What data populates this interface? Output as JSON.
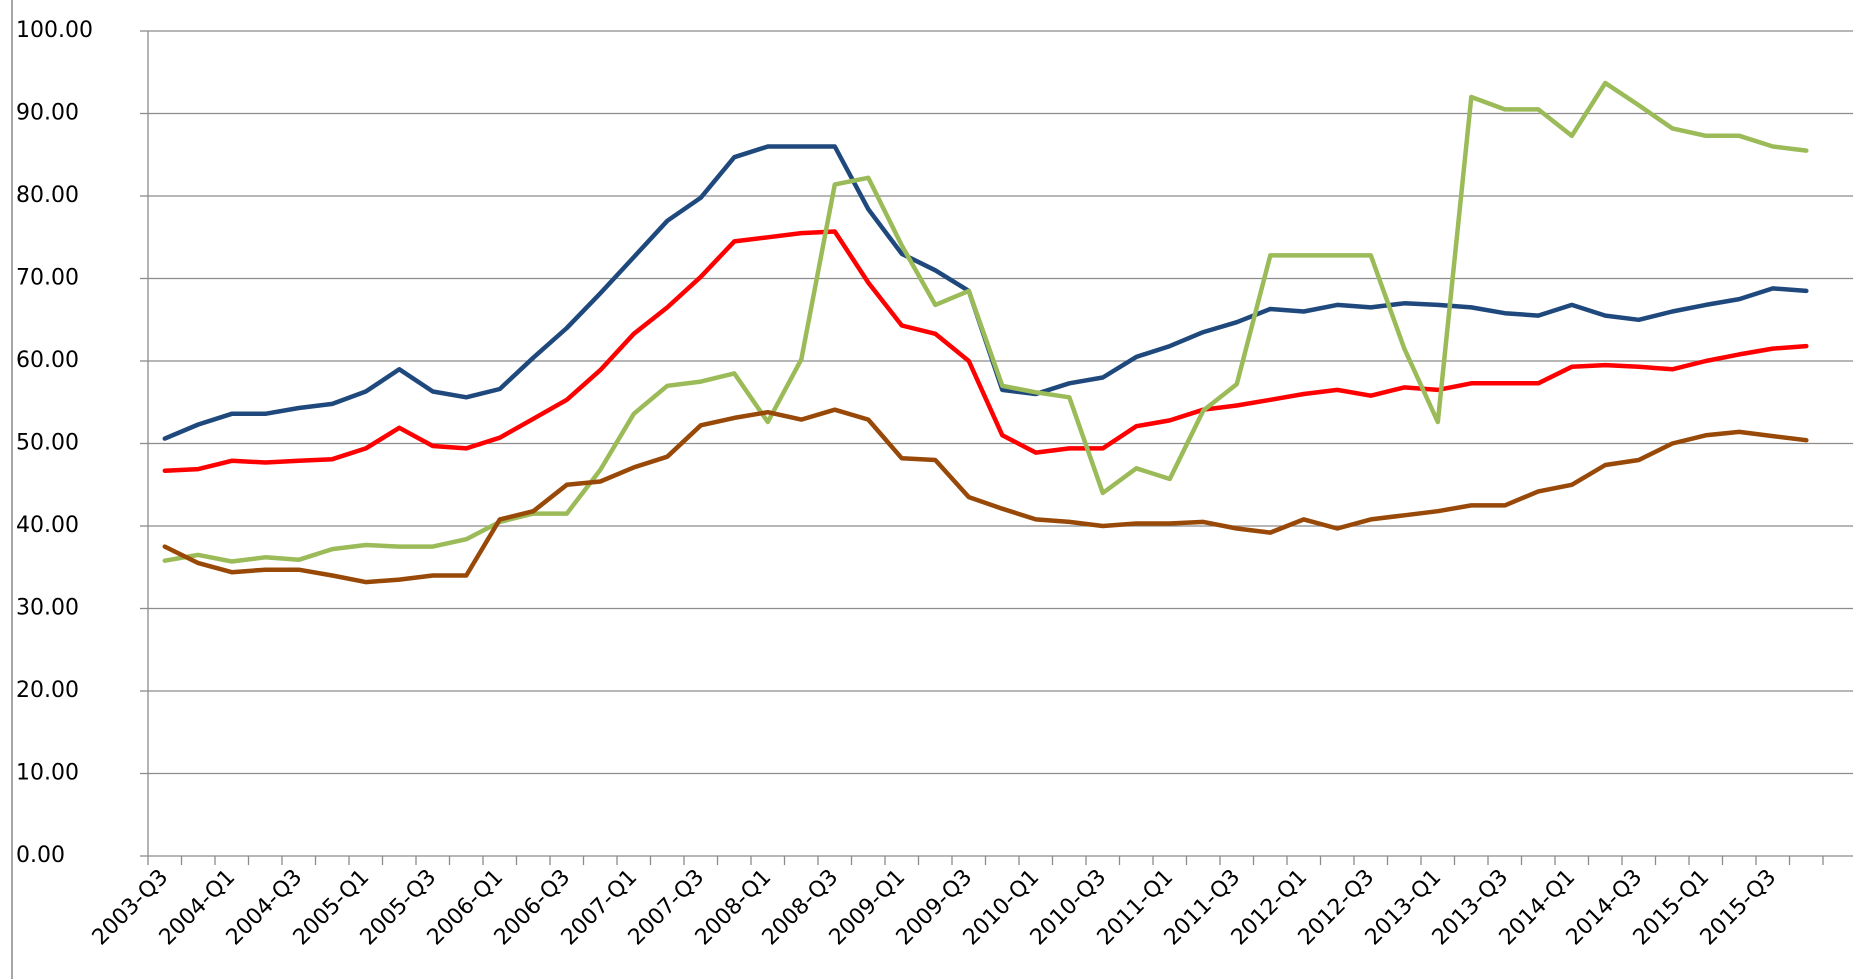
{
  "chart_data": {
    "type": "line",
    "categories": [
      "2003-Q3",
      null,
      "2004-Q1",
      null,
      "2004-Q3",
      null,
      "2005-Q1",
      null,
      "2005-Q3",
      null,
      "2006-Q1",
      null,
      "2006-Q3",
      null,
      "2007-Q1",
      null,
      "2007-Q3",
      null,
      "2008-Q1",
      null,
      "2008-Q3",
      null,
      "2009-Q1",
      null,
      "2009-Q3",
      null,
      "2010-Q1",
      null,
      "2010-Q3",
      null,
      "2011-Q1",
      null,
      "2011-Q3",
      null,
      "2012-Q1",
      null,
      "2012-Q3",
      null,
      "2013-Q1",
      null,
      "2013-Q3",
      null,
      "2014-Q1",
      null,
      "2014-Q3",
      null,
      "2015-Q1",
      null,
      "2015-Q3",
      null
    ],
    "series": [
      {
        "color": "#1f497d",
        "values": [
          50.6,
          52.3,
          53.6,
          53.6,
          54.3,
          54.8,
          56.3,
          59.0,
          56.3,
          55.6,
          56.6,
          60.4,
          64.0,
          68.2,
          72.6,
          77.0,
          79.8,
          84.7,
          86.0,
          86.0,
          86.0,
          78.4,
          73.0,
          71.0,
          68.5,
          56.5,
          56.0,
          57.3,
          58.0,
          60.5,
          61.8,
          63.5,
          64.7,
          66.3,
          66.0,
          66.8,
          66.5,
          67.0,
          66.8,
          66.5,
          65.8,
          65.5,
          66.8,
          65.5,
          65.0,
          66.0,
          66.8,
          67.5,
          68.8,
          68.5
        ]
      },
      {
        "color": "#ff0000",
        "values": [
          46.7,
          46.9,
          47.9,
          47.7,
          47.9,
          48.1,
          49.4,
          51.9,
          49.7,
          49.4,
          50.7,
          53.0,
          55.3,
          58.9,
          63.3,
          66.5,
          70.2,
          74.5,
          75.0,
          75.5,
          75.7,
          69.5,
          64.3,
          63.3,
          60.0,
          51.0,
          48.9,
          49.4,
          49.4,
          52.1,
          52.8,
          54.1,
          54.6,
          55.3,
          56.0,
          56.5,
          55.8,
          56.8,
          56.5,
          57.3,
          57.3,
          57.3,
          59.3,
          59.5,
          59.3,
          59.0,
          60.0,
          60.8,
          61.5,
          61.8
        ]
      },
      {
        "color": "#9bbb59",
        "values": [
          35.8,
          36.5,
          35.7,
          36.2,
          35.9,
          37.2,
          37.7,
          37.5,
          37.5,
          38.4,
          40.5,
          41.5,
          41.5,
          46.8,
          53.6,
          57.0,
          57.5,
          58.5,
          52.6,
          60.2,
          81.4,
          82.2,
          74.0,
          66.8,
          68.5,
          57.0,
          56.2,
          55.6,
          44.0,
          47.0,
          45.7,
          54.0,
          57.2,
          72.8,
          72.8,
          72.8,
          72.8,
          61.5,
          52.6,
          92.0,
          90.5,
          90.5,
          87.3,
          93.7,
          91.0,
          88.2,
          87.3,
          87.3,
          86.0,
          85.5
        ]
      },
      {
        "color": "#984807",
        "values": [
          37.5,
          35.5,
          34.4,
          34.7,
          34.7,
          34.0,
          33.2,
          33.5,
          34.0,
          34.0,
          40.8,
          41.8,
          45.0,
          45.4,
          47.1,
          48.4,
          52.2,
          53.1,
          53.8,
          52.9,
          54.1,
          52.9,
          48.2,
          48.0,
          43.5,
          42.1,
          40.8,
          40.5,
          40.0,
          40.3,
          40.3,
          40.5,
          39.7,
          39.2,
          40.8,
          39.7,
          40.8,
          41.3,
          41.8,
          42.5,
          42.5,
          44.2,
          45.0,
          47.4,
          48.0,
          50.0,
          51.0,
          51.4,
          50.9,
          50.4
        ]
      }
    ],
    "ylim": [
      0,
      100
    ],
    "yticks": [
      {
        "value": 0,
        "label": "0.00"
      },
      {
        "value": 10,
        "label": "10.00"
      },
      {
        "value": 20,
        "label": "20.00"
      },
      {
        "value": 30,
        "label": "30.00"
      },
      {
        "value": 40,
        "label": "40.00"
      },
      {
        "value": 50,
        "label": "50.00"
      },
      {
        "value": 60,
        "label": "60.00"
      },
      {
        "value": 70,
        "label": "70.00"
      },
      {
        "value": 80,
        "label": "80.00"
      },
      {
        "value": 90,
        "label": "90.00"
      },
      {
        "value": 100,
        "label": "100.00"
      }
    ],
    "grid": true
  }
}
